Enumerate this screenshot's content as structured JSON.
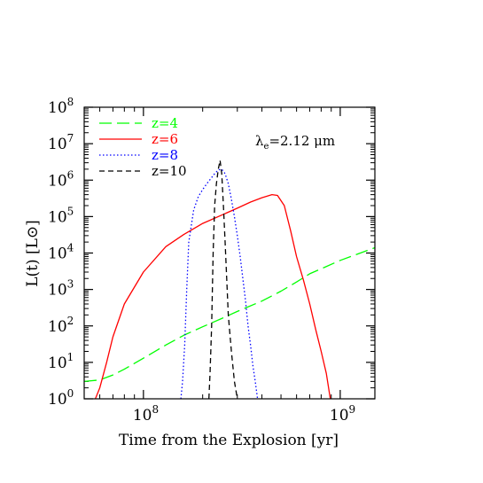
{
  "chart_data": {
    "type": "line",
    "xlabel": "Time from the Explosion [yr]",
    "ylabel": "L(t) [L⊙]",
    "xscale": "log",
    "yscale": "log",
    "xlim": [
      50000000,
      1500000000
    ],
    "ylim": [
      1,
      100000000
    ],
    "x_ticks": [
      {
        "value": 100000000,
        "base": "10",
        "exp": "8"
      },
      {
        "value": 1000000000,
        "base": "10",
        "exp": "9"
      }
    ],
    "y_ticks": [
      {
        "value": 1,
        "base": "10",
        "exp": "0"
      },
      {
        "value": 10,
        "base": "10",
        "exp": "1"
      },
      {
        "value": 100,
        "base": "10",
        "exp": "2"
      },
      {
        "value": 1000,
        "base": "10",
        "exp": "3"
      },
      {
        "value": 10000,
        "base": "10",
        "exp": "4"
      },
      {
        "value": 100000,
        "base": "10",
        "exp": "5"
      },
      {
        "value": 1000000,
        "base": "10",
        "exp": "6"
      },
      {
        "value": 10000000,
        "base": "10",
        "exp": "7"
      },
      {
        "value": 100000000,
        "base": "10",
        "exp": "8"
      }
    ],
    "annotation": {
      "prefix": "λ",
      "sub": "e",
      "text": "=2.12 μm"
    },
    "legend_position": "top-left",
    "series": [
      {
        "name": "z=4",
        "color": "#00ff00",
        "dash": "long-dash",
        "x": [
          50000000,
          60000000,
          70000000,
          80000000,
          100000000,
          130000000,
          160000000,
          200000000,
          250000000,
          300000000,
          400000000,
          500000000,
          600000000,
          700000000,
          800000000,
          1000000000,
          1200000000,
          1500000000
        ],
        "y": [
          3,
          3.3,
          4.5,
          6.5,
          13,
          30,
          55,
          95,
          160,
          250,
          480,
          900,
          1600,
          2700,
          3700,
          6300,
          9000,
          14000
        ]
      },
      {
        "name": "z=6",
        "color": "#ff0000",
        "dash": "solid",
        "x": [
          57000000,
          60000000,
          65000000,
          70000000,
          80000000,
          100000000,
          130000000,
          160000000,
          200000000,
          250000000,
          300000000,
          350000000,
          400000000,
          450000000,
          480000000,
          520000000,
          560000000,
          600000000,
          650000000,
          700000000,
          750000000,
          800000000,
          850000000,
          890000000
        ],
        "y": [
          1,
          2,
          10,
          50,
          400,
          3000,
          15000,
          32000,
          65000,
          110000,
          170000,
          250000,
          330000,
          400000,
          380000,
          200000,
          40000,
          8000,
          1800,
          400,
          80,
          20,
          5,
          1
        ]
      },
      {
        "name": "z=8",
        "color": "#0000ff",
        "dash": "dotted",
        "x": [
          155000000,
          158000000,
          162000000,
          166000000,
          170000000,
          180000000,
          190000000,
          200000000,
          210000000,
          220000000,
          230000000,
          240000000,
          250000000,
          260000000,
          270000000,
          280000000,
          290000000,
          300000000,
          310000000,
          320000000,
          330000000,
          340000000,
          350000000,
          360000000,
          370000000,
          380000000
        ],
        "y": [
          1,
          3,
          30,
          1000,
          20000,
          150000,
          350000,
          550000,
          800000,
          1100000,
          1500000,
          1900000,
          2000000,
          1500000,
          800000,
          300000,
          100000,
          30000,
          8000,
          2000,
          500,
          100,
          30,
          8,
          3,
          1
        ]
      },
      {
        "name": "z=10",
        "color": "#000000",
        "dash": "short-dash",
        "x": [
          215000000,
          218000000,
          222000000,
          226000000,
          230000000,
          235000000,
          240000000,
          245000000,
          250000000,
          255000000,
          260000000,
          265000000,
          270000000,
          280000000,
          290000000,
          300000000
        ],
        "y": [
          1,
          5,
          100,
          10000,
          200000,
          800000,
          2000000,
          3500000,
          1500000,
          200000,
          20000,
          2000,
          200,
          20,
          3,
          1
        ]
      }
    ]
  }
}
